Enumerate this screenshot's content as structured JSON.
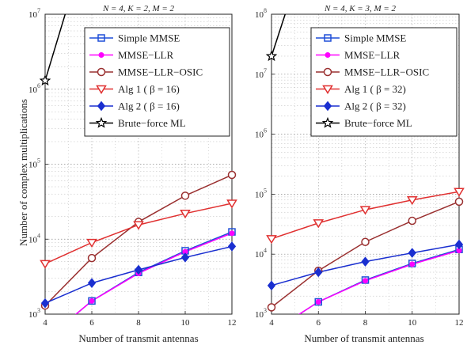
{
  "figure": {
    "ylabel": "Number of complex multiplications",
    "xlabel_left": "Number of transmit antennas",
    "xlabel_right": "Number of transmit antennas"
  },
  "chart_data": [
    {
      "type": "line",
      "title": "N = 4,  K = 2,  M = 2",
      "xlabel": "Number of transmit antennas",
      "ylabel": "Number of complex multiplications",
      "x": [
        4,
        6,
        8,
        10,
        12
      ],
      "xlim": [
        4,
        12
      ],
      "x_ticks": [
        "4",
        "6",
        "8",
        "10",
        "12"
      ],
      "ylim": [
        1000,
        10000000
      ],
      "log_y": true,
      "y_ticks": [
        {
          "value": 1000,
          "base": "10",
          "exp": "3"
        },
        {
          "value": 10000,
          "base": "10",
          "exp": "4"
        },
        {
          "value": 100000,
          "base": "10",
          "exp": "5"
        },
        {
          "value": 1000000,
          "base": "10",
          "exp": "6"
        },
        {
          "value": 10000000,
          "base": "10",
          "exp": "7"
        }
      ],
      "grid": true,
      "legend_position": "top-right",
      "series": [
        {
          "name": "Simple MMSE",
          "color": "#1f4fd8",
          "marker": "square",
          "values": [
            450,
            1500,
            3600,
            7000,
            12500
          ]
        },
        {
          "name": "MMSE−LLR",
          "color": "#ff00ff",
          "marker": "dot",
          "values": [
            450,
            1500,
            3500,
            6800,
            12000
          ]
        },
        {
          "name": "MMSE−LLR−OSIC",
          "color": "#9a3030",
          "marker": "circle",
          "values": [
            1300,
            5600,
            17000,
            38000,
            72000
          ]
        },
        {
          "name": "Alg 1 ( β = 16)",
          "color": "#e03030",
          "marker": "triangle-down",
          "values": [
            4700,
            9000,
            15500,
            22000,
            30000
          ]
        },
        {
          "name": "Alg 2 ( β = 16)",
          "color": "#1a2fd0",
          "marker": "diamond",
          "values": [
            1400,
            2600,
            3900,
            5700,
            8000
          ]
        },
        {
          "name": "Brute−force ML",
          "color": "#000000",
          "marker": "star",
          "values": [
            1300000,
            150000000,
            null,
            null,
            null
          ]
        }
      ]
    },
    {
      "type": "line",
      "title": "N = 4,  K = 3,  M = 2",
      "xlabel": "Number of transmit antennas",
      "ylabel": "",
      "x": [
        4,
        6,
        8,
        10,
        12
      ],
      "xlim": [
        4,
        12
      ],
      "x_ticks": [
        "4",
        "6",
        "8",
        "10",
        "12"
      ],
      "ylim": [
        1000,
        100000000
      ],
      "log_y": true,
      "y_ticks": [
        {
          "value": 1000,
          "base": "10",
          "exp": "3"
        },
        {
          "value": 10000,
          "base": "10",
          "exp": "4"
        },
        {
          "value": 100000,
          "base": "10",
          "exp": "5"
        },
        {
          "value": 1000000,
          "base": "10",
          "exp": "6"
        },
        {
          "value": 10000000,
          "base": "10",
          "exp": "7"
        },
        {
          "value": 100000000,
          "base": "10",
          "exp": "8"
        }
      ],
      "grid": true,
      "legend_position": "top-right",
      "series": [
        {
          "name": "Simple MMSE",
          "color": "#1f4fd8",
          "marker": "square",
          "values": [
            500,
            1600,
            3700,
            7000,
            12000
          ]
        },
        {
          "name": "MMSE−LLR",
          "color": "#ff00ff",
          "marker": "dot",
          "values": [
            500,
            1600,
            3600,
            6800,
            11500
          ]
        },
        {
          "name": "MMSE−LLR−OSIC",
          "color": "#9a3030",
          "marker": "circle",
          "values": [
            1300,
            5300,
            16000,
            36000,
            75000
          ]
        },
        {
          "name": "Alg 1 ( β = 32)",
          "color": "#e03030",
          "marker": "triangle-down",
          "values": [
            18000,
            33000,
            55000,
            80000,
            110000
          ]
        },
        {
          "name": "Alg 2 ( β = 32)",
          "color": "#1a2fd0",
          "marker": "diamond",
          "values": [
            3000,
            5000,
            7500,
            10500,
            14500
          ]
        },
        {
          "name": "Brute−force ML",
          "color": "#000000",
          "marker": "star",
          "values": [
            20000000,
            5000000000,
            null,
            null,
            null
          ]
        }
      ]
    }
  ]
}
